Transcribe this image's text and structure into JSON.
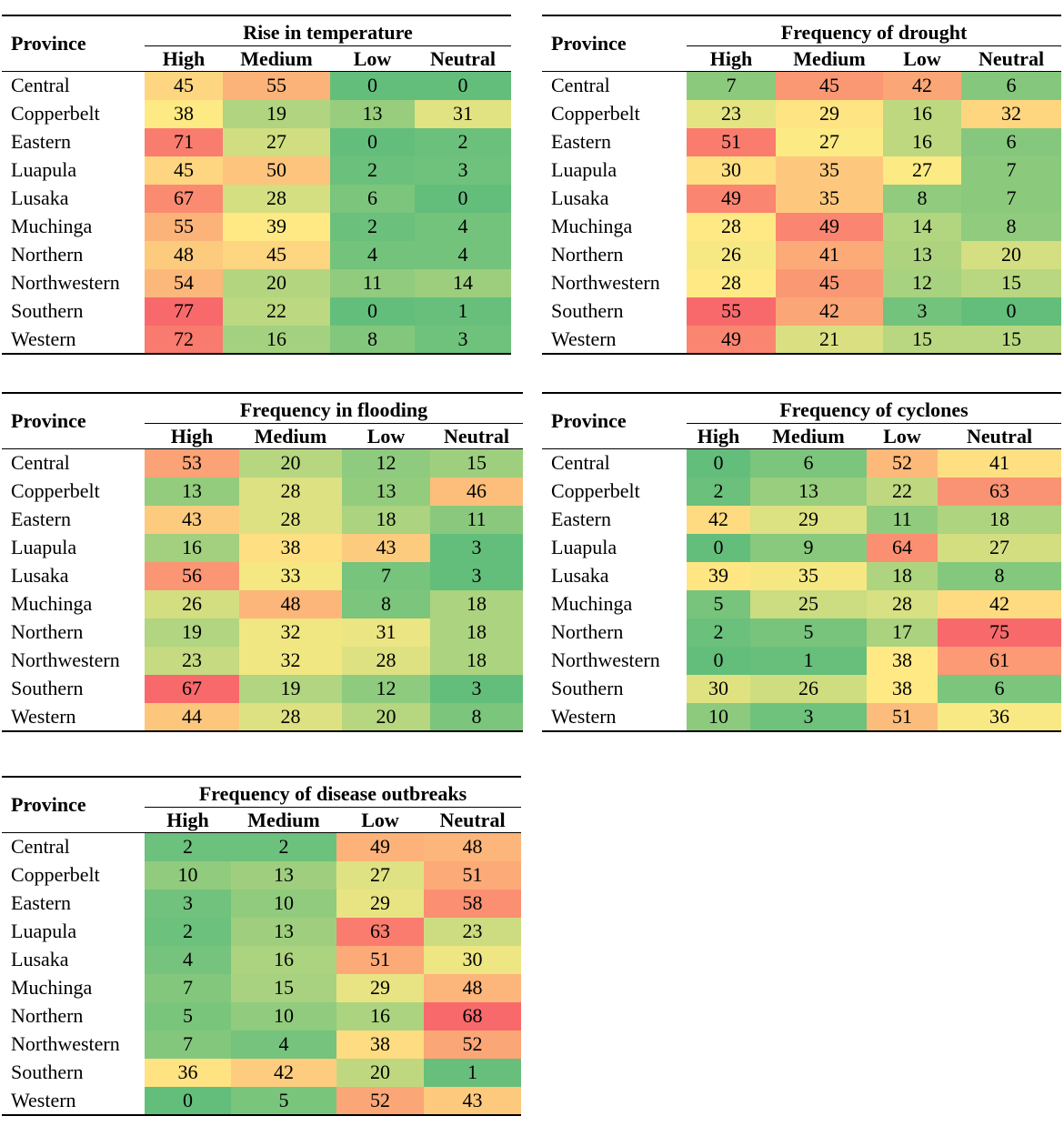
{
  "chart_data": [
    {
      "type": "heatmap",
      "title": "Rise in temperature",
      "row_header": "Province",
      "columns": [
        "High",
        "Medium",
        "Low",
        "Neutral"
      ],
      "rows": [
        "Central",
        "Copperbelt",
        "Eastern",
        "Luapula",
        "Lusaka",
        "Muchinga",
        "Northern",
        "Northwestern",
        "Southern",
        "Western"
      ],
      "values": [
        [
          45,
          55,
          0,
          0
        ],
        [
          38,
          19,
          13,
          31
        ],
        [
          71,
          27,
          0,
          2
        ],
        [
          45,
          50,
          2,
          3
        ],
        [
          67,
          28,
          6,
          0
        ],
        [
          55,
          39,
          2,
          4
        ],
        [
          48,
          45,
          4,
          4
        ],
        [
          54,
          20,
          11,
          14
        ],
        [
          77,
          22,
          0,
          1
        ],
        [
          72,
          16,
          8,
          3
        ]
      ]
    },
    {
      "type": "heatmap",
      "title": "Frequency of drought",
      "row_header": "Province",
      "columns": [
        "High",
        "Medium",
        "Low",
        "Neutral"
      ],
      "rows": [
        "Central",
        "Copperbelt",
        "Eastern",
        "Luapula",
        "Lusaka",
        "Muchinga",
        "Northern",
        "Northwestern",
        "Southern",
        "Western"
      ],
      "values": [
        [
          7,
          45,
          42,
          6
        ],
        [
          23,
          29,
          16,
          32
        ],
        [
          51,
          27,
          16,
          6
        ],
        [
          30,
          35,
          27,
          7
        ],
        [
          49,
          35,
          8,
          7
        ],
        [
          28,
          49,
          14,
          8
        ],
        [
          26,
          41,
          13,
          20
        ],
        [
          28,
          45,
          12,
          15
        ],
        [
          55,
          42,
          3,
          0
        ],
        [
          49,
          21,
          15,
          15
        ]
      ]
    },
    {
      "type": "heatmap",
      "title": "Frequency in flooding",
      "row_header": "Province",
      "columns": [
        "High",
        "Medium",
        "Low",
        "Neutral"
      ],
      "rows": [
        "Central",
        "Copperbelt",
        "Eastern",
        "Luapula",
        "Lusaka",
        "Muchinga",
        "Northern",
        "Northwestern",
        "Southern",
        "Western"
      ],
      "values": [
        [
          53,
          20,
          12,
          15
        ],
        [
          13,
          28,
          13,
          46
        ],
        [
          43,
          28,
          18,
          11
        ],
        [
          16,
          38,
          43,
          3
        ],
        [
          56,
          33,
          7,
          3
        ],
        [
          26,
          48,
          8,
          18
        ],
        [
          19,
          32,
          31,
          18
        ],
        [
          23,
          32,
          28,
          18
        ],
        [
          67,
          19,
          12,
          3
        ],
        [
          44,
          28,
          20,
          8
        ]
      ]
    },
    {
      "type": "heatmap",
      "title": "Frequency of cyclones",
      "row_header": "Province",
      "columns": [
        "High",
        "Medium",
        "Low",
        "Neutral"
      ],
      "rows": [
        "Central",
        "Copperbelt",
        "Eastern",
        "Luapula",
        "Lusaka",
        "Muchinga",
        "Northern",
        "Northwestern",
        "Southern",
        "Western"
      ],
      "values": [
        [
          0,
          6,
          52,
          41
        ],
        [
          2,
          13,
          22,
          63
        ],
        [
          42,
          29,
          11,
          18
        ],
        [
          0,
          9,
          64,
          27
        ],
        [
          39,
          35,
          18,
          8
        ],
        [
          5,
          25,
          28,
          42
        ],
        [
          2,
          5,
          17,
          75
        ],
        [
          0,
          1,
          38,
          61
        ],
        [
          30,
          26,
          38,
          6
        ],
        [
          10,
          3,
          51,
          36
        ]
      ]
    },
    {
      "type": "heatmap",
      "title": "Frequency of disease outbreaks",
      "row_header": "Province",
      "columns": [
        "High",
        "Medium",
        "Low",
        "Neutral"
      ],
      "rows": [
        "Central",
        "Copperbelt",
        "Eastern",
        "Luapula",
        "Lusaka",
        "Muchinga",
        "Northern",
        "Northwestern",
        "Southern",
        "Western"
      ],
      "values": [
        [
          2,
          2,
          49,
          48
        ],
        [
          10,
          13,
          27,
          51
        ],
        [
          3,
          10,
          29,
          58
        ],
        [
          2,
          13,
          63,
          23
        ],
        [
          4,
          16,
          51,
          30
        ],
        [
          7,
          15,
          29,
          48
        ],
        [
          5,
          10,
          16,
          68
        ],
        [
          7,
          4,
          38,
          52
        ],
        [
          36,
          42,
          20,
          1
        ],
        [
          0,
          5,
          52,
          43
        ]
      ]
    }
  ],
  "colors": {
    "low": "#63be7b",
    "mid": "#ffeb84",
    "high": "#f8696b"
  }
}
